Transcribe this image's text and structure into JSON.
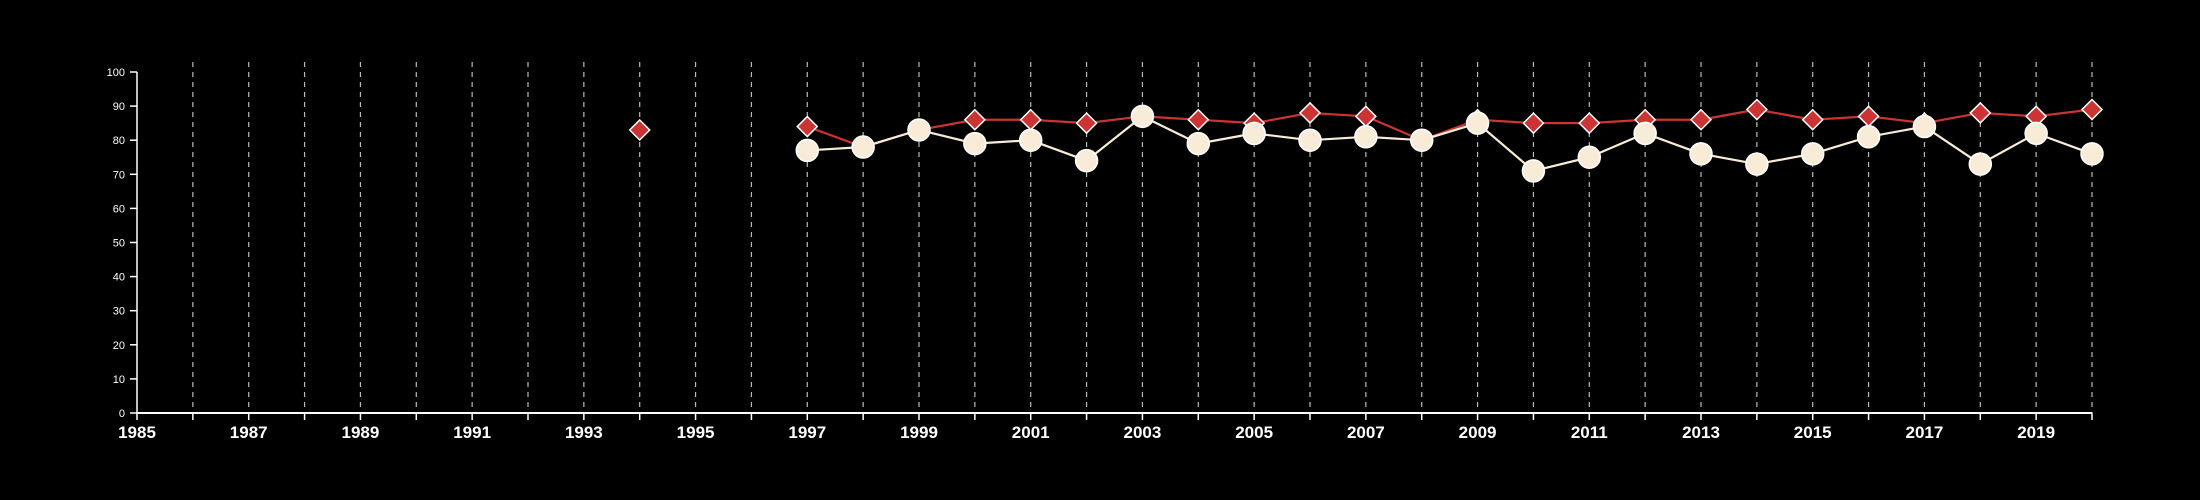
{
  "chart_data": {
    "type": "line",
    "title": "",
    "xlabel": "",
    "ylabel": "",
    "xlim": [
      1985,
      2020
    ],
    "ylim": [
      0,
      100
    ],
    "y_ticks": [
      0,
      10,
      20,
      30,
      40,
      50,
      60,
      70,
      80,
      90,
      100
    ],
    "x_ticks": [
      1985,
      1987,
      1989,
      1991,
      1993,
      1995,
      1997,
      1999,
      2001,
      2003,
      2005,
      2007,
      2009,
      2011,
      2013,
      2015,
      2017,
      2019
    ],
    "grid": "vertical dashed lines at every year",
    "colors": {
      "background": "#000000",
      "axis": "#ffffff",
      "grid": "#bbbbbb"
    },
    "series": [
      {
        "marker": "diamond",
        "color": "#cc3333",
        "points": [
          [
            1994,
            83
          ],
          [
            1997,
            84
          ],
          [
            1998,
            78
          ],
          [
            1999,
            83
          ],
          [
            2000,
            86
          ],
          [
            2001,
            86
          ],
          [
            2002,
            85
          ],
          [
            2003,
            87
          ],
          [
            2004,
            86
          ],
          [
            2005,
            85
          ],
          [
            2006,
            88
          ],
          [
            2007,
            87
          ],
          [
            2008,
            80
          ],
          [
            2009,
            86
          ],
          [
            2010,
            85
          ],
          [
            2011,
            85
          ],
          [
            2012,
            86
          ],
          [
            2013,
            86
          ],
          [
            2014,
            89
          ],
          [
            2015,
            86
          ],
          [
            2016,
            87
          ],
          [
            2017,
            85
          ],
          [
            2018,
            88
          ],
          [
            2019,
            87
          ],
          [
            2020,
            89
          ]
        ]
      },
      {
        "marker": "circle",
        "color": "#f8ecd8",
        "points": [
          [
            1997,
            77
          ],
          [
            1998,
            78
          ],
          [
            1999,
            83
          ],
          [
            2000,
            79
          ],
          [
            2001,
            80
          ],
          [
            2002,
            74
          ],
          [
            2003,
            87
          ],
          [
            2004,
            79
          ],
          [
            2005,
            82
          ],
          [
            2006,
            80
          ],
          [
            2007,
            81
          ],
          [
            2008,
            80
          ],
          [
            2009,
            85
          ],
          [
            2010,
            71
          ],
          [
            2011,
            75
          ],
          [
            2012,
            82
          ],
          [
            2013,
            76
          ],
          [
            2014,
            73
          ],
          [
            2015,
            76
          ],
          [
            2016,
            81
          ],
          [
            2017,
            84
          ],
          [
            2018,
            73
          ],
          [
            2019,
            82
          ],
          [
            2020,
            76
          ]
        ]
      }
    ]
  }
}
